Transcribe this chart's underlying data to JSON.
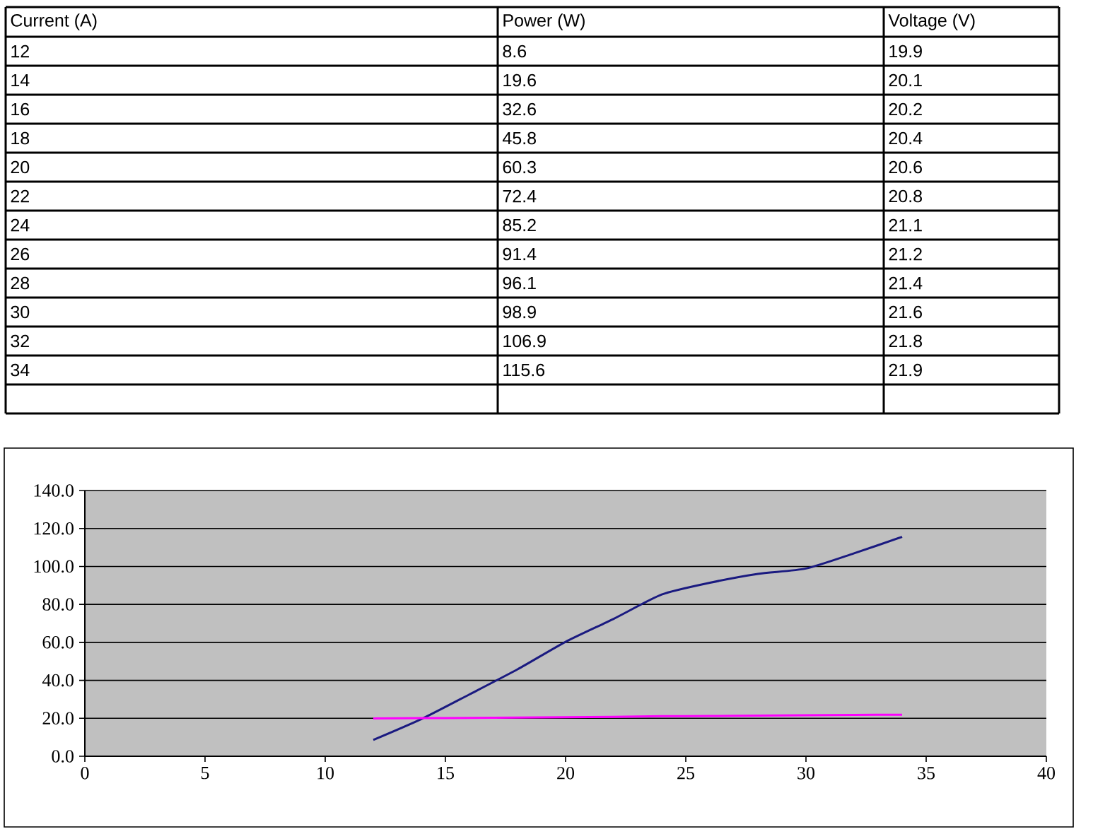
{
  "chart_data": {
    "type": "line",
    "x": [
      12,
      14,
      16,
      18,
      20,
      22,
      24,
      26,
      28,
      30,
      32,
      34
    ],
    "series": [
      {
        "color": "#1a1a80",
        "values": [
          8.6,
          19.6,
          32.6,
          45.8,
          60.3,
          72.4,
          85.2,
          91.4,
          96.1,
          98.9,
          106.9,
          115.6
        ]
      },
      {
        "color": "#ff00ff",
        "values": [
          19.9,
          20.1,
          20.2,
          20.4,
          20.6,
          20.8,
          21.1,
          21.2,
          21.4,
          21.6,
          21.8,
          21.9
        ]
      }
    ],
    "annotations": [
      "Current (A)",
      "Power (W)",
      "Voltage (V)",
      "12",
      "8.6",
      "19.9",
      "14",
      "19.6",
      "20.1",
      "16",
      "32.6",
      "20.2",
      "18",
      "45.8",
      "20.4",
      "20",
      "60.3",
      "20.6",
      "22",
      "72.4",
      "20.8",
      "24",
      "85.2",
      "21.1",
      "26",
      "91.4",
      "21.2",
      "28",
      "96.1",
      "21.4",
      "30",
      "98.9",
      "21.6",
      "32",
      "106.9",
      "21.8",
      "34",
      "115.6",
      "21.9"
    ],
    "xlim": [
      0,
      40
    ],
    "xticks": [
      0,
      5,
      10,
      15,
      20,
      25,
      30,
      35,
      40
    ],
    "ylim": [
      0,
      140
    ],
    "yticks": [
      {
        "value": 0,
        "label": "0.0"
      },
      {
        "value": 20,
        "label": "20.0"
      },
      {
        "value": 40,
        "label": "40.0"
      },
      {
        "value": 60,
        "label": "60.0"
      },
      {
        "value": 80,
        "label": "80.0"
      },
      {
        "value": 100,
        "label": "100.0"
      },
      {
        "value": 120,
        "label": "120.0"
      },
      {
        "value": 140,
        "label": "140.0"
      }
    ],
    "grid": "y",
    "marker": "none",
    "line_style": "solid"
  }
}
